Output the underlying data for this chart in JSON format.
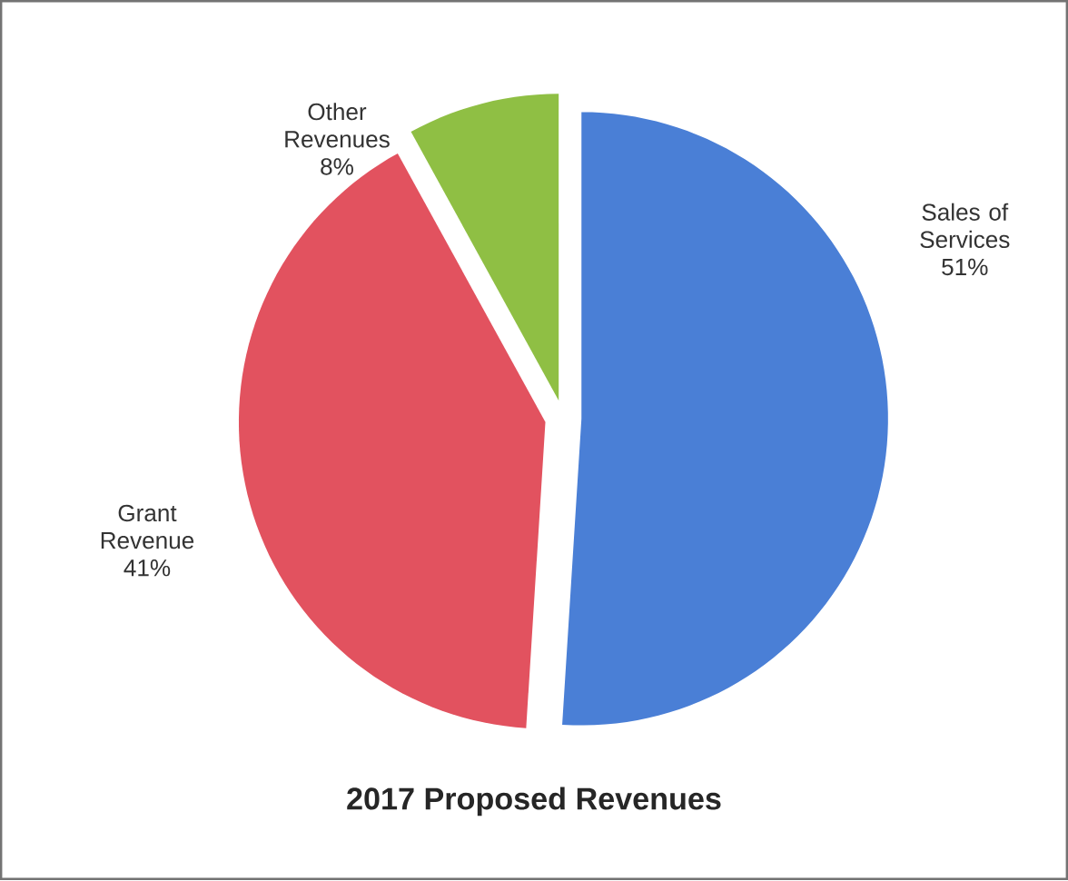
{
  "chart_data": {
    "type": "pie",
    "title": "2017 Proposed Revenues",
    "categories": [
      "Sales of Services",
      "Grant Revenue",
      "Other Revenues"
    ],
    "values": [
      51,
      41,
      8
    ],
    "colors": [
      "#4a7fd6",
      "#e2525f",
      "#8fbf44"
    ],
    "value_labels": [
      "51%",
      "41%",
      "8%"
    ]
  }
}
